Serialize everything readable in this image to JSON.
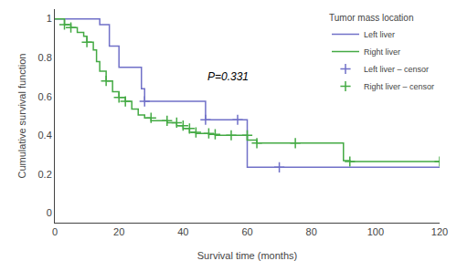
{
  "chart_data": {
    "type": "line",
    "xlabel": "Survival time (months)",
    "ylabel": "Cumulative survival function",
    "xlim": [
      0,
      120
    ],
    "ylim": [
      -0.05,
      1.05
    ],
    "xticks": [
      0,
      20,
      40,
      60,
      80,
      100,
      120
    ],
    "yticks": [
      0,
      0.2,
      0.4,
      0.6,
      0.8,
      1
    ],
    "grid": false,
    "legend": "upper right",
    "legend_title": "Tumor mass location",
    "annotations": [
      {
        "text": "P=0.331",
        "x": 47,
        "y": 0.66
      }
    ],
    "series": [
      {
        "name": "Left liver",
        "color": "#7070c8",
        "line_style": "solid",
        "x": [
          0,
          14,
          14,
          17,
          17,
          20,
          20,
          27,
          27,
          28,
          28,
          47,
          47,
          60,
          60,
          120
        ],
        "values": [
          1.0,
          1.0,
          0.97,
          0.97,
          0.86,
          0.86,
          0.75,
          0.75,
          0.64,
          0.64,
          0.575,
          0.575,
          0.48,
          0.48,
          0.235,
          0.235
        ]
      },
      {
        "name": "Right liver",
        "color": "#44aa44",
        "line_style": "solid",
        "x": [
          0,
          3,
          3,
          5,
          5,
          7,
          7,
          9,
          9,
          10,
          10,
          12,
          12,
          13,
          13,
          14,
          14,
          16,
          16,
          18,
          18,
          20,
          20,
          22,
          22,
          24,
          24,
          26,
          26,
          28,
          28,
          30,
          30,
          35,
          35,
          38,
          38,
          40,
          40,
          42,
          42,
          44,
          44,
          48,
          48,
          50,
          50,
          55,
          60,
          60,
          63,
          63,
          75,
          90,
          90,
          92,
          92,
          120
        ],
        "values": [
          1.0,
          1.0,
          0.97,
          0.97,
          0.955,
          0.955,
          0.93,
          0.93,
          0.91,
          0.91,
          0.88,
          0.88,
          0.84,
          0.84,
          0.78,
          0.78,
          0.73,
          0.73,
          0.68,
          0.68,
          0.625,
          0.625,
          0.595,
          0.595,
          0.575,
          0.575,
          0.535,
          0.535,
          0.505,
          0.505,
          0.49,
          0.49,
          0.475,
          0.475,
          0.465,
          0.465,
          0.45,
          0.45,
          0.435,
          0.435,
          0.415,
          0.415,
          0.41,
          0.41,
          0.405,
          0.405,
          0.4,
          0.4,
          0.4,
          0.375,
          0.375,
          0.36,
          0.36,
          0.36,
          0.27,
          0.27,
          0.265,
          0.265
        ]
      },
      {
        "name": "Left liver – censor",
        "color": "#7070c8",
        "type": "scatter",
        "marker": "+",
        "x": [
          28,
          47,
          57,
          70
        ],
        "values": [
          0.575,
          0.48,
          0.48,
          0.235
        ]
      },
      {
        "name": "Right liver – censor",
        "color": "#44aa44",
        "type": "scatter",
        "marker": "+",
        "x": [
          3,
          5,
          10,
          16,
          20,
          22,
          30,
          35,
          38,
          40,
          42,
          44,
          48,
          50,
          55,
          60,
          63,
          75,
          92,
          120
        ],
        "values": [
          0.97,
          0.955,
          0.88,
          0.68,
          0.595,
          0.575,
          0.49,
          0.475,
          0.465,
          0.45,
          0.435,
          0.415,
          0.41,
          0.405,
          0.4,
          0.4,
          0.36,
          0.36,
          0.265,
          0.265
        ]
      }
    ]
  }
}
